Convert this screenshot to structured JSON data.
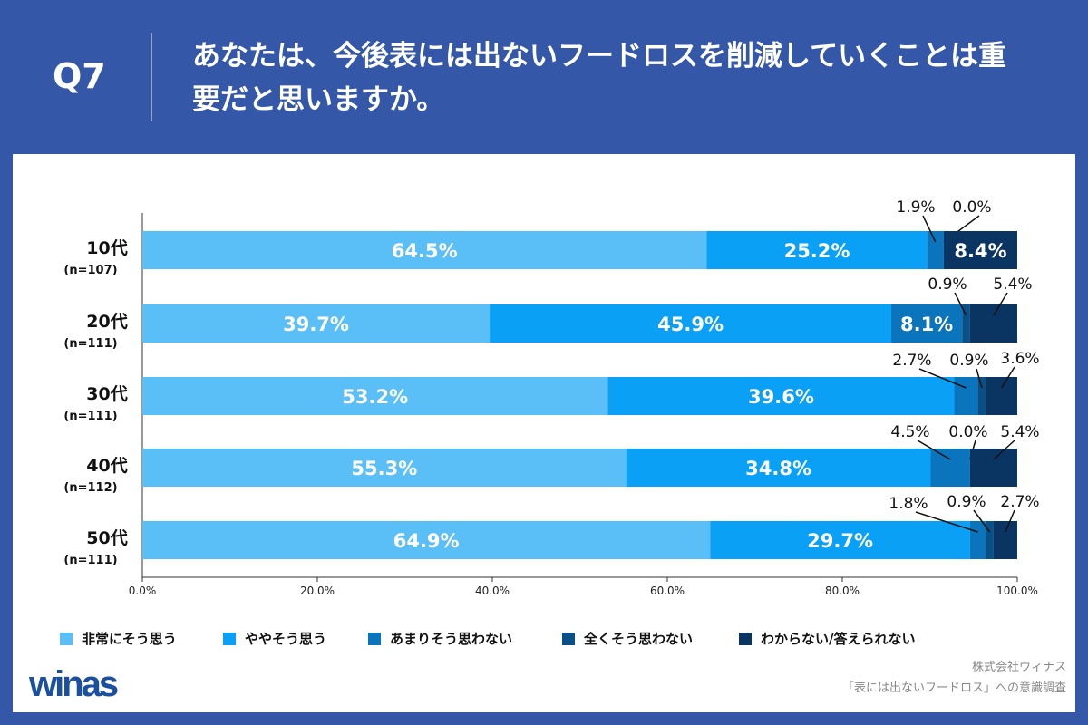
{
  "header": {
    "question": "Q7",
    "title": "あなたは、今後表には出ないフードロスを削減していくことは重要だと思いますか。"
  },
  "chart_data": {
    "type": "bar",
    "orientation": "horizontal-stacked-100",
    "categories": [
      {
        "label": "10代",
        "n": "(n=107)"
      },
      {
        "label": "20代",
        "n": "(n=111)"
      },
      {
        "label": "30代",
        "n": "(n=111)"
      },
      {
        "label": "40代",
        "n": "(n=112)"
      },
      {
        "label": "50代",
        "n": "(n=111)"
      }
    ],
    "series": [
      {
        "name": "非常にそう思う",
        "color": "#5bbff7",
        "values": [
          64.5,
          39.7,
          53.2,
          55.3,
          64.9
        ]
      },
      {
        "name": "ややそう思う",
        "color": "#0aa0f5",
        "values": [
          25.2,
          45.9,
          39.6,
          34.8,
          29.7
        ]
      },
      {
        "name": "あまりそう思わない",
        "color": "#0a74bd",
        "values": [
          1.9,
          8.1,
          2.7,
          4.5,
          1.8
        ]
      },
      {
        "name": "全くそう思わない",
        "color": "#0a4f86",
        "values": [
          0.0,
          0.9,
          0.9,
          0.0,
          0.9
        ]
      },
      {
        "name": "わからない/答えられない",
        "color": "#0a3462",
        "values": [
          8.4,
          5.4,
          3.6,
          5.4,
          2.7
        ]
      }
    ],
    "xticks": [
      "0.0%",
      "20.0%",
      "40.0%",
      "60.0%",
      "80.0%",
      "100.0%"
    ],
    "xlim": [
      0,
      100
    ],
    "legend": "bottom",
    "grid": false
  },
  "footer": {
    "logo": "winas",
    "company": "株式会社ウィナス",
    "survey": "「表には出ないフードロス」への意識調査"
  }
}
